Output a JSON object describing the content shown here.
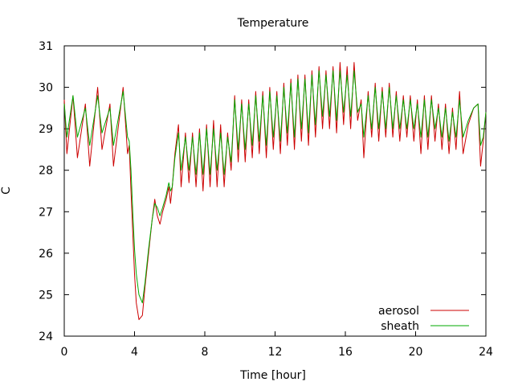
{
  "chart_data": {
    "type": "line",
    "title": "Temperature",
    "xlabel": "Time [hour]",
    "ylabel": "C",
    "xlim": [
      0,
      24
    ],
    "ylim": [
      24,
      31
    ],
    "xticks": [
      0,
      4,
      8,
      12,
      16,
      20,
      24
    ],
    "xtick_labels": [
      "0",
      "4",
      "8",
      "12",
      "16",
      "20",
      "24"
    ],
    "yticks": [
      24,
      25,
      26,
      27,
      28,
      29,
      30,
      31
    ],
    "ytick_labels": [
      "24",
      "25",
      "26",
      "27",
      "28",
      "29",
      "30",
      "31"
    ],
    "grid": false,
    "legend_position": "bottom-right",
    "series": [
      {
        "name": "aerosol",
        "color": "#cc0000",
        "points": [
          [
            0.0,
            29.7
          ],
          [
            0.15,
            28.4
          ],
          [
            0.5,
            29.8
          ],
          [
            0.75,
            28.3
          ],
          [
            1.2,
            29.6
          ],
          [
            1.45,
            28.1
          ],
          [
            1.9,
            30.0
          ],
          [
            2.15,
            28.5
          ],
          [
            2.6,
            29.6
          ],
          [
            2.8,
            28.1
          ],
          [
            3.35,
            30.0
          ],
          [
            3.6,
            28.4
          ],
          [
            3.7,
            28.6
          ],
          [
            3.8,
            27.5
          ],
          [
            3.9,
            26.5
          ],
          [
            4.0,
            25.5
          ],
          [
            4.1,
            24.8
          ],
          [
            4.25,
            24.4
          ],
          [
            4.45,
            24.5
          ],
          [
            4.6,
            25.2
          ],
          [
            4.8,
            26.0
          ],
          [
            5.0,
            26.8
          ],
          [
            5.15,
            27.3
          ],
          [
            5.3,
            26.9
          ],
          [
            5.45,
            26.7
          ],
          [
            5.6,
            27.0
          ],
          [
            5.8,
            27.3
          ],
          [
            5.95,
            27.6
          ],
          [
            6.05,
            27.2
          ],
          [
            6.15,
            27.6
          ],
          [
            6.3,
            28.4
          ],
          [
            6.5,
            29.1
          ],
          [
            6.65,
            27.6
          ],
          [
            6.9,
            28.9
          ],
          [
            7.1,
            27.7
          ],
          [
            7.3,
            28.9
          ],
          [
            7.5,
            27.6
          ],
          [
            7.7,
            29.0
          ],
          [
            7.9,
            27.5
          ],
          [
            8.1,
            29.1
          ],
          [
            8.3,
            27.6
          ],
          [
            8.5,
            29.2
          ],
          [
            8.7,
            27.6
          ],
          [
            8.9,
            29.1
          ],
          [
            9.1,
            27.6
          ],
          [
            9.3,
            28.9
          ],
          [
            9.5,
            28.0
          ],
          [
            9.7,
            29.8
          ],
          [
            9.9,
            28.2
          ],
          [
            10.1,
            29.7
          ],
          [
            10.3,
            28.2
          ],
          [
            10.5,
            29.7
          ],
          [
            10.7,
            28.3
          ],
          [
            10.9,
            29.9
          ],
          [
            11.1,
            28.4
          ],
          [
            11.3,
            29.9
          ],
          [
            11.5,
            28.3
          ],
          [
            11.7,
            30.0
          ],
          [
            11.9,
            28.5
          ],
          [
            12.1,
            29.9
          ],
          [
            12.3,
            28.4
          ],
          [
            12.5,
            30.1
          ],
          [
            12.7,
            28.6
          ],
          [
            12.9,
            30.2
          ],
          [
            13.1,
            28.5
          ],
          [
            13.3,
            30.3
          ],
          [
            13.5,
            28.7
          ],
          [
            13.7,
            30.3
          ],
          [
            13.9,
            28.6
          ],
          [
            14.1,
            30.4
          ],
          [
            14.3,
            28.8
          ],
          [
            14.5,
            30.5
          ],
          [
            14.7,
            29.0
          ],
          [
            14.9,
            30.4
          ],
          [
            15.1,
            29.0
          ],
          [
            15.3,
            30.5
          ],
          [
            15.5,
            28.9
          ],
          [
            15.7,
            30.6
          ],
          [
            15.9,
            29.1
          ],
          [
            16.1,
            30.5
          ],
          [
            16.3,
            29.0
          ],
          [
            16.5,
            30.6
          ],
          [
            16.7,
            29.2
          ],
          [
            16.9,
            29.7
          ],
          [
            17.05,
            28.3
          ],
          [
            17.3,
            29.9
          ],
          [
            17.5,
            28.8
          ],
          [
            17.7,
            30.1
          ],
          [
            17.9,
            28.7
          ],
          [
            18.1,
            30.0
          ],
          [
            18.3,
            28.8
          ],
          [
            18.5,
            30.1
          ],
          [
            18.7,
            28.8
          ],
          [
            18.9,
            29.9
          ],
          [
            19.1,
            28.7
          ],
          [
            19.3,
            29.8
          ],
          [
            19.5,
            28.8
          ],
          [
            19.7,
            29.8
          ],
          [
            19.9,
            28.7
          ],
          [
            20.1,
            29.7
          ],
          [
            20.3,
            28.4
          ],
          [
            20.5,
            29.8
          ],
          [
            20.7,
            28.5
          ],
          [
            20.9,
            29.8
          ],
          [
            21.1,
            28.7
          ],
          [
            21.3,
            29.6
          ],
          [
            21.5,
            28.5
          ],
          [
            21.7,
            29.6
          ],
          [
            21.9,
            28.4
          ],
          [
            22.1,
            29.5
          ],
          [
            22.3,
            28.5
          ],
          [
            22.5,
            29.9
          ],
          [
            22.7,
            28.4
          ],
          [
            23.0,
            29.1
          ],
          [
            23.3,
            29.5
          ],
          [
            23.55,
            29.6
          ],
          [
            23.7,
            28.1
          ],
          [
            23.85,
            28.7
          ],
          [
            24.0,
            29.4
          ]
        ]
      },
      {
        "name": "sheath",
        "color": "#00aa00",
        "points": [
          [
            0.0,
            29.6
          ],
          [
            0.15,
            28.8
          ],
          [
            0.5,
            29.8
          ],
          [
            0.75,
            28.8
          ],
          [
            1.2,
            29.5
          ],
          [
            1.45,
            28.6
          ],
          [
            1.9,
            29.8
          ],
          [
            2.15,
            28.9
          ],
          [
            2.6,
            29.5
          ],
          [
            2.8,
            28.6
          ],
          [
            3.35,
            29.9
          ],
          [
            3.6,
            28.8
          ],
          [
            3.7,
            28.7
          ],
          [
            3.8,
            28.0
          ],
          [
            3.9,
            27.0
          ],
          [
            4.0,
            26.1
          ],
          [
            4.1,
            25.5
          ],
          [
            4.25,
            25.0
          ],
          [
            4.45,
            24.8
          ],
          [
            4.6,
            25.3
          ],
          [
            4.8,
            26.1
          ],
          [
            5.0,
            26.8
          ],
          [
            5.15,
            27.2
          ],
          [
            5.3,
            27.1
          ],
          [
            5.45,
            26.9
          ],
          [
            5.6,
            27.1
          ],
          [
            5.8,
            27.4
          ],
          [
            5.95,
            27.7
          ],
          [
            6.05,
            27.5
          ],
          [
            6.15,
            27.6
          ],
          [
            6.3,
            28.3
          ],
          [
            6.5,
            28.9
          ],
          [
            6.65,
            28.0
          ],
          [
            6.9,
            28.8
          ],
          [
            7.1,
            28.0
          ],
          [
            7.3,
            28.8
          ],
          [
            7.5,
            27.9
          ],
          [
            7.7,
            28.9
          ],
          [
            7.9,
            27.9
          ],
          [
            8.1,
            29.0
          ],
          [
            8.3,
            27.9
          ],
          [
            8.5,
            29.0
          ],
          [
            8.7,
            28.0
          ],
          [
            8.9,
            28.9
          ],
          [
            9.1,
            27.9
          ],
          [
            9.3,
            28.8
          ],
          [
            9.5,
            28.2
          ],
          [
            9.7,
            29.7
          ],
          [
            9.9,
            28.5
          ],
          [
            10.1,
            29.6
          ],
          [
            10.3,
            28.5
          ],
          [
            10.5,
            29.6
          ],
          [
            10.7,
            28.6
          ],
          [
            10.9,
            29.8
          ],
          [
            11.1,
            28.7
          ],
          [
            11.3,
            29.8
          ],
          [
            11.5,
            28.6
          ],
          [
            11.7,
            29.9
          ],
          [
            11.9,
            28.8
          ],
          [
            12.1,
            29.8
          ],
          [
            12.3,
            28.7
          ],
          [
            12.5,
            30.0
          ],
          [
            12.7,
            28.9
          ],
          [
            12.9,
            30.1
          ],
          [
            13.1,
            28.8
          ],
          [
            13.3,
            30.2
          ],
          [
            13.5,
            29.0
          ],
          [
            13.7,
            30.2
          ],
          [
            13.9,
            28.9
          ],
          [
            14.1,
            30.3
          ],
          [
            14.3,
            29.1
          ],
          [
            14.5,
            30.4
          ],
          [
            14.7,
            29.3
          ],
          [
            14.9,
            30.3
          ],
          [
            15.1,
            29.3
          ],
          [
            15.3,
            30.4
          ],
          [
            15.5,
            29.2
          ],
          [
            15.7,
            30.4
          ],
          [
            15.9,
            29.4
          ],
          [
            16.1,
            30.3
          ],
          [
            16.3,
            29.3
          ],
          [
            16.5,
            30.4
          ],
          [
            16.7,
            29.4
          ],
          [
            16.9,
            29.6
          ],
          [
            17.05,
            28.8
          ],
          [
            17.3,
            29.8
          ],
          [
            17.5,
            29.0
          ],
          [
            17.7,
            30.0
          ],
          [
            17.9,
            29.0
          ],
          [
            18.1,
            29.9
          ],
          [
            18.3,
            29.0
          ],
          [
            18.5,
            30.0
          ],
          [
            18.7,
            29.0
          ],
          [
            18.9,
            29.8
          ],
          [
            19.1,
            29.0
          ],
          [
            19.3,
            29.7
          ],
          [
            19.5,
            29.0
          ],
          [
            19.7,
            29.7
          ],
          [
            19.9,
            29.0
          ],
          [
            20.1,
            29.6
          ],
          [
            20.3,
            28.8
          ],
          [
            20.5,
            29.7
          ],
          [
            20.7,
            28.8
          ],
          [
            20.9,
            29.7
          ],
          [
            21.1,
            29.0
          ],
          [
            21.3,
            29.5
          ],
          [
            21.5,
            28.8
          ],
          [
            21.7,
            29.5
          ],
          [
            21.9,
            28.7
          ],
          [
            22.1,
            29.4
          ],
          [
            22.3,
            28.8
          ],
          [
            22.5,
            29.7
          ],
          [
            22.7,
            28.8
          ],
          [
            23.0,
            29.2
          ],
          [
            23.3,
            29.5
          ],
          [
            23.55,
            29.6
          ],
          [
            23.7,
            28.6
          ],
          [
            23.85,
            28.8
          ],
          [
            24.0,
            29.4
          ]
        ]
      }
    ]
  }
}
